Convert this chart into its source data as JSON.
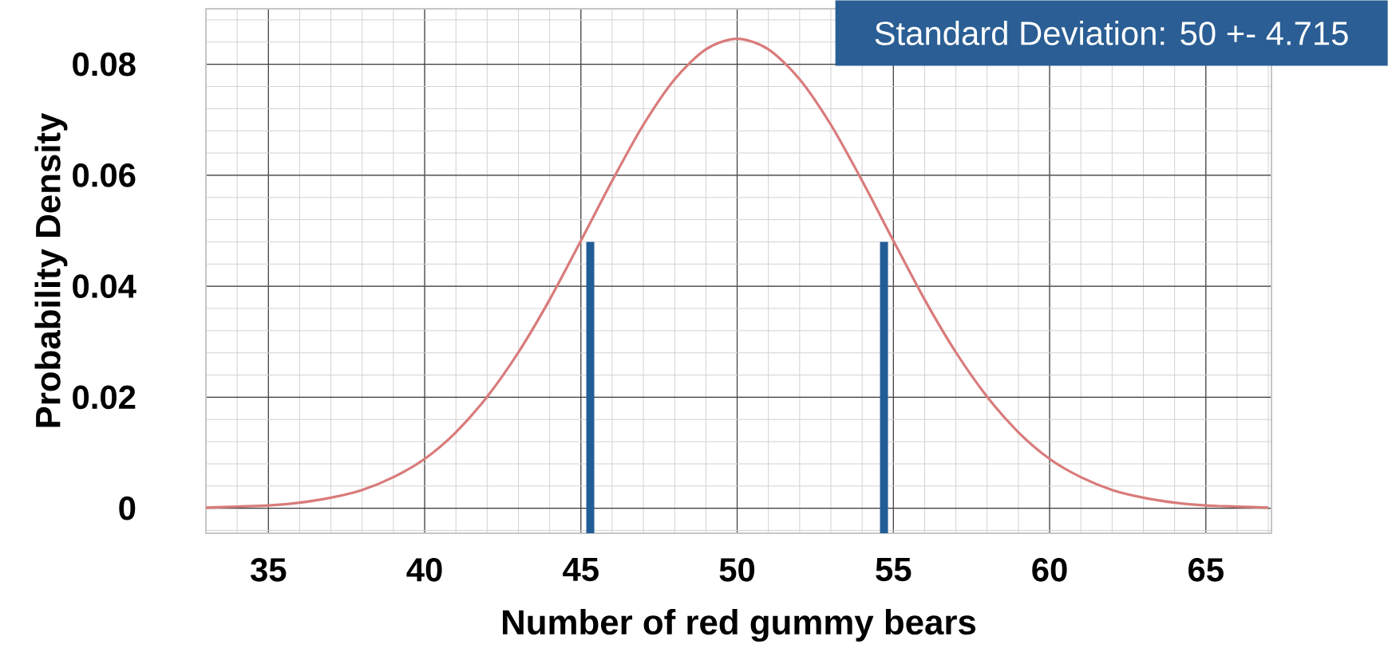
{
  "chart_data": {
    "type": "line",
    "xlabel": "Number of red gummy bears",
    "ylabel": "Probability Density",
    "annotations": [
      "Standard Deviation: 50 +- 4.715"
    ],
    "xlim": [
      33,
      67.1
    ],
    "ylim": [
      -0.0045,
      0.09
    ],
    "xticks": [
      35,
      40,
      45,
      50,
      55,
      60,
      65
    ],
    "yticks": [
      0,
      0.02,
      0.04,
      0.06,
      0.08
    ],
    "grid": true,
    "series": [
      {
        "color": "#d97b7b",
        "x": [
          33,
          34,
          35,
          36,
          37,
          38,
          39,
          40,
          41,
          42,
          43,
          44,
          45,
          46,
          47,
          48,
          49,
          50,
          51,
          52,
          53,
          54,
          55,
          56,
          57,
          58,
          59,
          60,
          61,
          62,
          63,
          64,
          65,
          66,
          67
        ],
        "values": [
          0.0001,
          0.0003,
          0.0005,
          0.001,
          0.0019,
          0.0033,
          0.0056,
          0.0089,
          0.0137,
          0.0201,
          0.0281,
          0.0376,
          0.0482,
          0.059,
          0.0691,
          0.0773,
          0.0827,
          0.0846,
          0.0827,
          0.0773,
          0.0691,
          0.059,
          0.0482,
          0.0376,
          0.0281,
          0.0201,
          0.0137,
          0.0089,
          0.0056,
          0.0033,
          0.0019,
          0.001,
          0.0005,
          0.0003,
          0.0001
        ]
      },
      {
        "type": "bar",
        "color": "#235d97",
        "x": [
          45.3,
          54.7
        ],
        "values": [
          0.0525,
          0.0525
        ],
        "base": [
          -0.0045,
          -0.0045
        ]
      }
    ]
  }
}
